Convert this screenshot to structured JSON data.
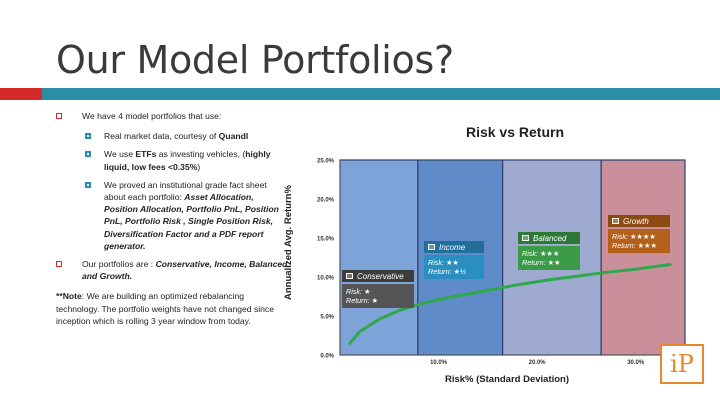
{
  "slide": {
    "title": "Our Model Portfolios?"
  },
  "bullets": {
    "intro": "We have 4 model portfolios that use:",
    "sub1_pre": "Real market data, courtesy of ",
    "sub1_bold": "Quandl",
    "sub2_pre": "We use ",
    "sub2_bold1": "ETFs",
    "sub2_mid": " as investing vehicles, (",
    "sub2_bold2": "highly liquid, low fees <0.35%",
    "sub2_post": ")",
    "sub3_pre": "We proved an institutional grade fact sheet about each portfolio: ",
    "sub3_bold": "Asset Allocation, Position Allocation, Portfolio PnL, Position PnL,  Portfolio Risk , Single Position Risk, Diversification Factor and a PDF report generator.",
    "main2_pre": "Our portfolios are : ",
    "main2_bold": "Conservative, Income, Balanced and Growth.",
    "note_bold": "**Note",
    "note_text": ": We are building an optimized rebalancing technology.  The portfolio weights have not changed since inception which is rolling 3 year window from today."
  },
  "chart_data": {
    "type": "area",
    "title": "Risk vs Return",
    "xlabel": "Risk% (Standard Deviation)",
    "ylabel": "Annualized Avg. Return%",
    "xlim": [
      0,
      35
    ],
    "ylim": [
      0,
      25
    ],
    "x_ticks": [
      "10.0%",
      "20.0%",
      "30.0%"
    ],
    "x_tick_values": [
      10,
      20,
      30
    ],
    "y_ticks": [
      "0.0%",
      "5.0%",
      "10.0%",
      "15.0%",
      "20.0%",
      "25.0%"
    ],
    "y_tick_values": [
      0,
      5,
      10,
      15,
      20,
      25
    ],
    "regions": [
      {
        "name": "Conservative",
        "x_range": [
          0,
          7.9
        ],
        "color": "#7ea3d8",
        "risk": "Risk: ★",
        "return": "Return: ★"
      },
      {
        "name": "Income",
        "x_range": [
          7.9,
          16.5
        ],
        "color": "#5f8cc9",
        "risk": "Risk: ★★",
        "return": "Return: ★½"
      },
      {
        "name": "Balanced",
        "x_range": [
          16.5,
          26.5
        ],
        "color": "#9eaad0",
        "risk": "Risk: ★★★",
        "return": "Return: ★★"
      },
      {
        "name": "Growth",
        "x_range": [
          26.5,
          35
        ],
        "color": "#c98f9b",
        "risk": "Risk: ★★★★",
        "return": "Return: ★★★"
      }
    ],
    "curve": {
      "color": "#2ea84a",
      "x": [
        1,
        2,
        4,
        6,
        8,
        10,
        12,
        15,
        18,
        21,
        24,
        27,
        30,
        33.5
      ],
      "y": [
        1.5,
        3.0,
        4.6,
        5.7,
        6.5,
        7.1,
        7.6,
        8.3,
        9.0,
        9.6,
        10.1,
        10.6,
        11.0,
        11.6
      ]
    },
    "grid": false,
    "legend": "none"
  },
  "cards": [
    {
      "name": "Conservative",
      "risk": "Risk: ★",
      "ret": "Return: ★",
      "head_color": "#3d3d3d",
      "body_color": "#555555"
    },
    {
      "name": "Income",
      "risk": "Risk: ★★",
      "ret": "Return: ★½",
      "head_color": "#1f6f9a",
      "body_color": "#2b8ec0"
    },
    {
      "name": "Balanced",
      "risk": "Risk: ★★★",
      "ret": "Return: ★★",
      "head_color": "#2d7a38",
      "body_color": "#3a9a46"
    },
    {
      "name": "Growth",
      "risk": "Risk: ★★★★",
      "ret": "Return: ★★★",
      "head_color": "#8a4a12",
      "body_color": "#b3611a"
    }
  ],
  "logo": {
    "text": "iP"
  },
  "colors": {
    "accent_red": "#d42a2a",
    "accent_teal": "#2c8ea6",
    "logo": "#e8872a"
  }
}
